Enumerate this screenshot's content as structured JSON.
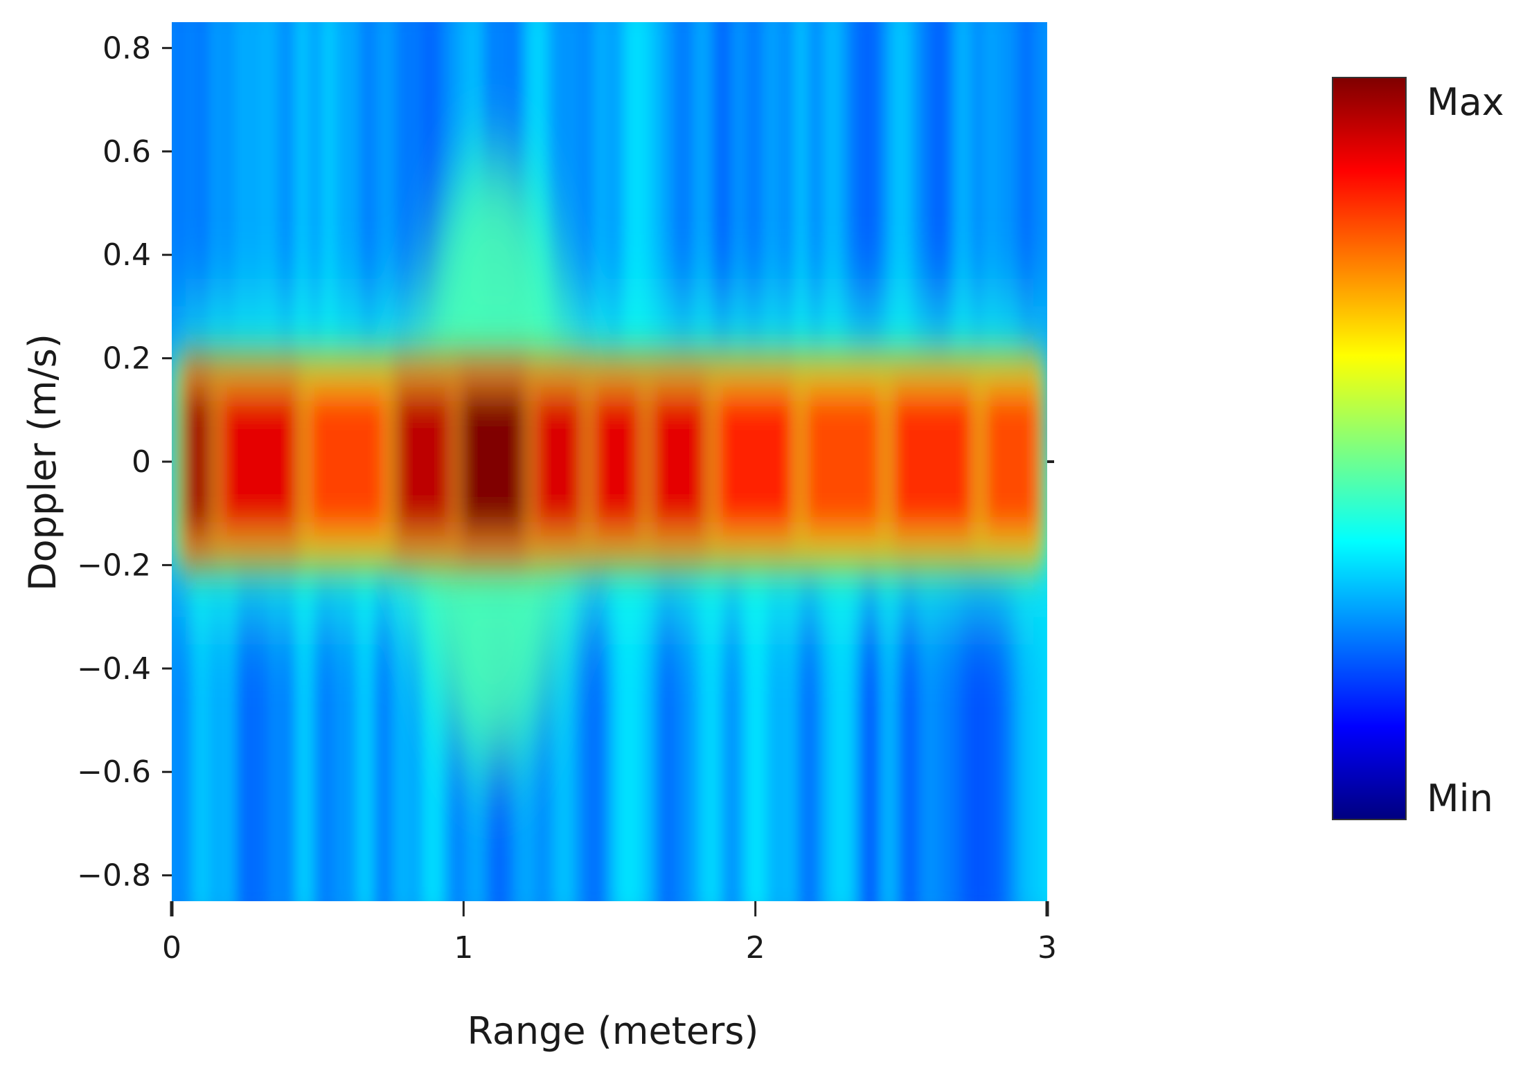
{
  "chart_data": {
    "type": "heatmap",
    "title": "",
    "xlabel": "Range (meters)",
    "ylabel": "Doppler (m/s)",
    "xlim": [
      0,
      3
    ],
    "ylim": [
      -0.85,
      0.85
    ],
    "x_ticks": [
      {
        "value": 0,
        "label": "0"
      },
      {
        "value": 1,
        "label": "1"
      },
      {
        "value": 2,
        "label": "2"
      },
      {
        "value": 3,
        "label": "3"
      }
    ],
    "y_ticks": [
      {
        "value": 0.8,
        "label": "0.8"
      },
      {
        "value": 0.6,
        "label": "0.6"
      },
      {
        "value": 0.4,
        "label": "0.4"
      },
      {
        "value": 0.2,
        "label": "0.2"
      },
      {
        "value": 0,
        "label": "0"
      },
      {
        "value": -0.2,
        "label": "−0.2"
      },
      {
        "value": -0.4,
        "label": "−0.4"
      },
      {
        "value": -0.6,
        "label": "−0.6"
      },
      {
        "value": -0.8,
        "label": "−0.8"
      }
    ],
    "grid": false,
    "colorbar": {
      "colormap": "jet",
      "max_label": "Max",
      "min_label": "Min",
      "colors": [
        "#00007f",
        "#0000ff",
        "#007fff",
        "#00ffff",
        "#7fff7f",
        "#ffff00",
        "#ff7f00",
        "#ff0000",
        "#7f0000"
      ]
    },
    "range_profile": [
      {
        "x": 0.05,
        "intensity": 0.93
      },
      {
        "x": 0.25,
        "intensity": 0.8
      },
      {
        "x": 0.65,
        "intensity": 0.62
      },
      {
        "x": 0.85,
        "intensity": 0.88
      },
      {
        "x": 1.1,
        "intensity": 1.0
      },
      {
        "x": 1.35,
        "intensity": 0.82
      },
      {
        "x": 1.5,
        "intensity": 0.8
      },
      {
        "x": 1.75,
        "intensity": 0.8
      },
      {
        "x": 1.95,
        "intensity": 0.68
      },
      {
        "x": 2.35,
        "intensity": 0.6
      },
      {
        "x": 2.55,
        "intensity": 0.66
      },
      {
        "x": 2.98,
        "intensity": 0.6
      }
    ]
  }
}
